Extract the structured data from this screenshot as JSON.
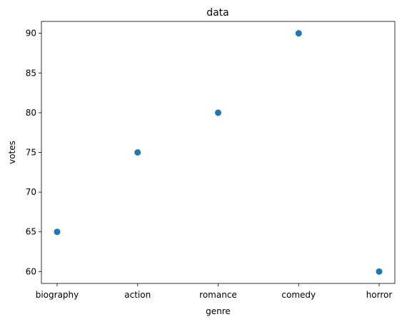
{
  "chart_data": {
    "type": "scatter",
    "title": "data",
    "xlabel": "genre",
    "ylabel": "votes",
    "categories": [
      "biography",
      "action",
      "romance",
      "comedy",
      "horror"
    ],
    "series": [
      {
        "values": [
          65,
          75,
          80,
          90,
          60
        ],
        "color": "#1f77b4"
      }
    ],
    "ylim": [
      58.5,
      91.5
    ],
    "yticks": [
      60,
      65,
      70,
      75,
      80,
      85,
      90
    ],
    "grid": false,
    "legend": "none"
  }
}
